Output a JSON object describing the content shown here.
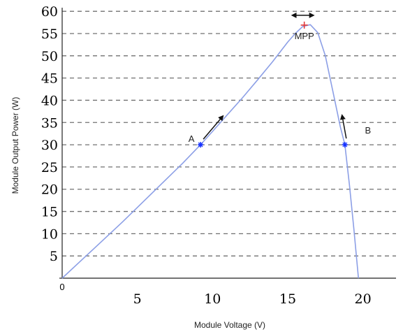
{
  "chart_data": {
    "type": "line",
    "xlabel": "Module Voltage (V)",
    "ylabel": "Module Output Power (W)",
    "xlim": [
      0,
      22.2
    ],
    "ylim": [
      0,
      60.5
    ],
    "x_ticks": [
      0,
      5,
      10,
      15,
      20
    ],
    "y_ticks": [
      5,
      10,
      15,
      20,
      25,
      30,
      35,
      40,
      45,
      50,
      55,
      60
    ],
    "grid": "horizontal dashed",
    "series": [
      {
        "color": "#8c9fe6",
        "x": [
          0,
          2,
          4,
          6,
          8,
          9.2,
          10,
          11,
          12,
          13,
          14,
          15,
          15.5,
          16,
          16.5,
          17,
          17.5,
          18,
          18.5,
          18.8,
          19.1,
          19.4,
          19.7
        ],
        "y": [
          0,
          6.3,
          12.6,
          19.2,
          25.8,
          30.0,
          33.0,
          36.8,
          40.6,
          44.6,
          48.7,
          53.1,
          55.0,
          56.6,
          57.0,
          55.2,
          50.0,
          42.0,
          34.0,
          30.0,
          21.0,
          11.0,
          0
        ]
      }
    ],
    "annotations": [
      {
        "label": "A",
        "x": 9.2,
        "y": 30.0,
        "marker_color": "#1430ff",
        "arrow": "up-right"
      },
      {
        "label": "B",
        "x": 18.8,
        "y": 30.0,
        "marker_color": "#1430ff",
        "arrow": "up-left"
      },
      {
        "label": "MPP",
        "x": 16.1,
        "y": 56.9,
        "marker_color": "#e23a3a",
        "arrow": "double-horizontal"
      }
    ]
  }
}
